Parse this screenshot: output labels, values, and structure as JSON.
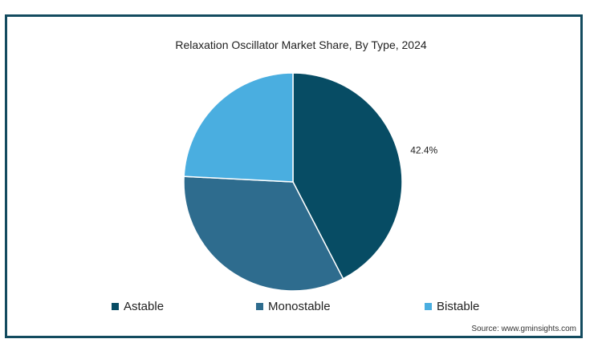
{
  "chart_data": {
    "type": "pie",
    "title": "Relaxation Oscillator Market Share, By Type, 2024",
    "slices": [
      {
        "name": "Astable",
        "value": 42.4,
        "label": "42.4%",
        "color": "#074c64"
      },
      {
        "name": "Monostable",
        "value": 33.4,
        "label": "",
        "color": "#2e6c8e"
      },
      {
        "name": "Bistable",
        "value": 24.2,
        "label": "",
        "color": "#4aaee0"
      }
    ],
    "legend_position": "bottom"
  },
  "source": "Source: www.gminsights.com"
}
